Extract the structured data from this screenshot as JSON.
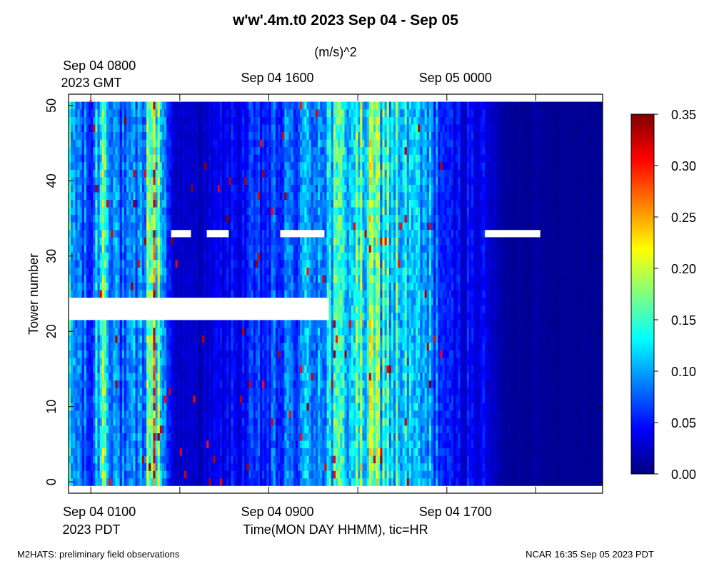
{
  "chart_data": {
    "type": "heatmap",
    "title": "w'w'.4m.t0 2023 Sep 04 - Sep 05",
    "units_label": "(m/s)^2",
    "ylabel": "Tower number",
    "xlabel": "Time(MON DAY HHMM), tic=HR",
    "x_units": "hours since Sep 04 0000 PDT",
    "xlim": [
      0.0,
      24.0
    ],
    "ylim": [
      -1.5,
      51.5
    ],
    "y_ticks": [
      "0",
      "10",
      "20",
      "30",
      "40",
      "50"
    ],
    "y_tick_values": [
      0,
      10,
      20,
      30,
      40,
      50
    ],
    "bottom_ticks": [
      {
        "value": 1,
        "label": "Sep 04 0100"
      },
      {
        "value": 9,
        "label": "Sep 04 0900"
      },
      {
        "value": 17,
        "label": "Sep 04 1700"
      }
    ],
    "bottom_tick_marks": [
      1,
      5,
      9,
      13,
      17,
      21
    ],
    "bottom_tz": "2023 PDT",
    "top_ticks": [
      {
        "value": 1,
        "label": "Sep 04 0800"
      },
      {
        "value": 9,
        "label": "Sep 04 1600"
      },
      {
        "value": 17,
        "label": "Sep 05 0000"
      }
    ],
    "top_tz": "2023 GMT",
    "data_x_range": [
      0.0,
      24.0
    ],
    "data_towers": [
      0,
      50
    ],
    "missing_blocks": [
      {
        "towers": [
          22,
          24
        ],
        "x_range": [
          0.0,
          11.7
        ]
      }
    ],
    "partial_rows": [
      {
        "tower": 33,
        "note": "sparse coverage",
        "segments": [
          [
            0.0,
            4.6
          ],
          [
            5.5,
            6.2
          ],
          [
            7.2,
            9.5
          ],
          [
            11.5,
            18.7
          ],
          [
            21.2,
            24.0
          ]
        ]
      }
    ],
    "marker": {
      "x": 1,
      "tower": 50,
      "symbol": "^"
    },
    "typical_variance_profile": {
      "hours": [
        0,
        0.5,
        1,
        1.6,
        2,
        2.5,
        3.3,
        3.8,
        4.5,
        5,
        6,
        7,
        8,
        9,
        10,
        11,
        12,
        13,
        14,
        15,
        15.7,
        16.5,
        17,
        18.5,
        19.5,
        20,
        22,
        24
      ],
      "values": [
        0.1,
        0.08,
        0.05,
        0.17,
        0.1,
        0.06,
        0.08,
        0.2,
        0.05,
        0.02,
        0.025,
        0.035,
        0.045,
        0.055,
        0.07,
        0.095,
        0.115,
        0.13,
        0.14,
        0.11,
        0.09,
        0.08,
        0.04,
        0.04,
        0.01,
        0.01,
        0.008,
        0.008
      ]
    },
    "colorbar": {
      "min": 0.0,
      "max": 0.35,
      "ticks": [
        "0.00",
        "0.05",
        "0.10",
        "0.15",
        "0.20",
        "0.25",
        "0.30",
        "0.35"
      ],
      "tick_values": [
        0.0,
        0.05,
        0.1,
        0.15,
        0.2,
        0.25,
        0.3,
        0.35
      ],
      "colormap": "jet",
      "stops": [
        "#00007f",
        "#0000ff",
        "#007fff",
        "#00ffff",
        "#7fff7f",
        "#ffff00",
        "#ff7f00",
        "#ff0000",
        "#7f0000"
      ]
    },
    "grid": false
  },
  "footer": {
    "left": "M2HATS: preliminary field observations",
    "right": "NCAR 16:35 Sep 05 2023 PDT"
  }
}
